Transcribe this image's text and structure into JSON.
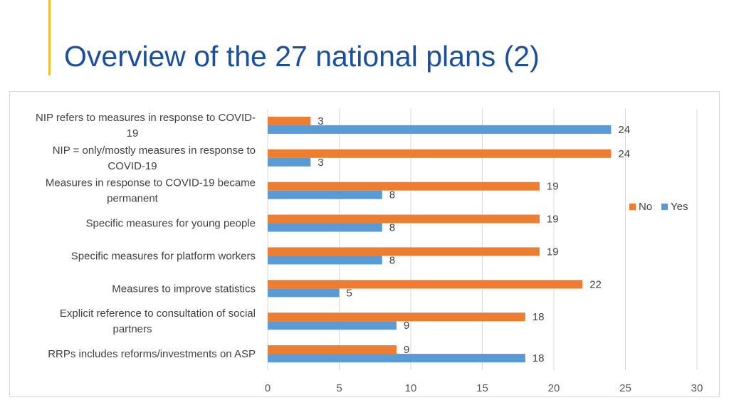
{
  "slide": {
    "title": "Overview of the 27 national plans (2)"
  },
  "chart_data": {
    "type": "bar",
    "orientation": "horizontal",
    "categories": [
      [
        "NIP refers to measures in response to COVID-",
        "19"
      ],
      [
        "NIP = only/mostly  measures in response to",
        "COVID-19"
      ],
      [
        "Measures in response to COVID-19 became",
        "permanent"
      ],
      [
        "Specific measures for young people"
      ],
      [
        "Specific measures for platform workers"
      ],
      [
        "Measures to improve statistics"
      ],
      [
        "Explicit reference to consultation of social",
        "partners"
      ],
      [
        "RRPs includes reforms/investments on ASP"
      ]
    ],
    "series": [
      {
        "name": "No",
        "color": "#ED7D31",
        "values": [
          3,
          24,
          19,
          19,
          19,
          22,
          18,
          9
        ]
      },
      {
        "name": "Yes",
        "color": "#5B9BD5",
        "values": [
          24,
          3,
          8,
          8,
          8,
          5,
          9,
          18
        ]
      }
    ],
    "xlim": [
      0,
      30
    ],
    "xticks": [
      0,
      5,
      10,
      15,
      20,
      25,
      30
    ],
    "grid": true,
    "legend": "right",
    "data_labels": true
  }
}
